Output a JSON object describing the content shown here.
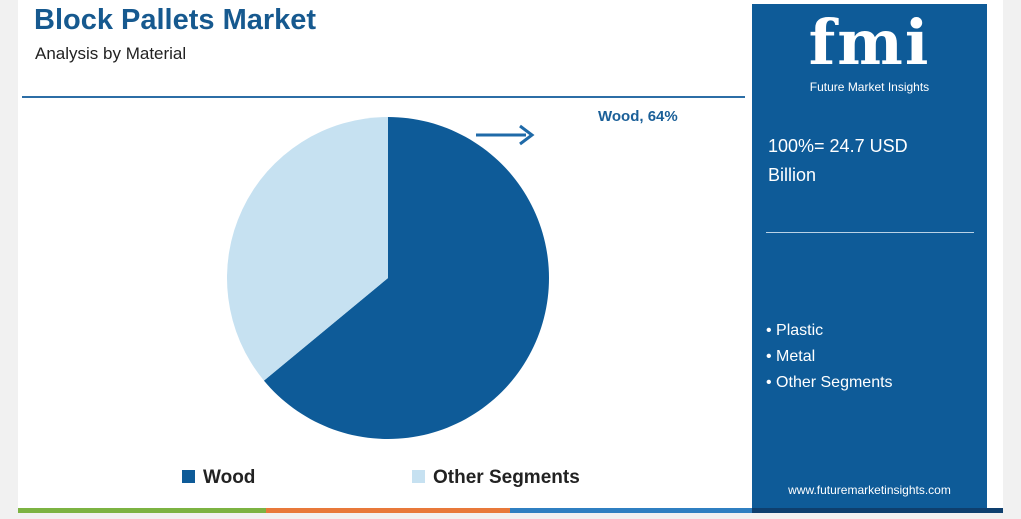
{
  "chart_data": {
    "type": "pie",
    "title": "Block Pallets Market",
    "subtitle": "Analysis by Material",
    "categories": [
      "Wood",
      "Other Segments"
    ],
    "values": [
      64,
      36
    ],
    "value_labels": [
      "Wood, 64%",
      null
    ],
    "colors": [
      "#0e5b98",
      "#c6e1f1"
    ],
    "legend": "bottom"
  },
  "panel": {
    "logo": "fmi",
    "logo_caption": "Future Market Insights",
    "total": "100%= 24.7 USD Billion",
    "other_materials": [
      "Plastic",
      "Metal",
      "Other Segments"
    ],
    "url": "www.futuremarketinsights.com"
  }
}
